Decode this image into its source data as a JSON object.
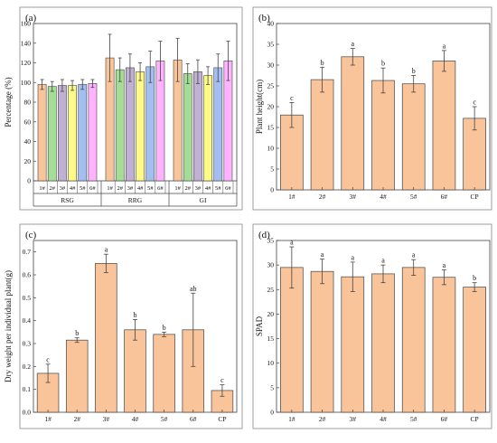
{
  "chart_data": [
    {
      "panel": "(a)",
      "type": "bar",
      "ylabel": "Percentage (%)",
      "ylim": [
        0,
        160
      ],
      "yticks": [
        0,
        20,
        40,
        60,
        80,
        100,
        120,
        140,
        160
      ],
      "groups": [
        "RSG",
        "RRG",
        "GI"
      ],
      "categories": [
        "1#",
        "2#",
        "3#",
        "4#",
        "5#",
        "6#"
      ],
      "series_colors": [
        "#f9c49a",
        "#a6dd96",
        "#c0b0d4",
        "#fdfa88",
        "#a3bff1",
        "#ffb3ff"
      ],
      "values": [
        [
          98,
          96,
          97,
          97,
          98,
          99
        ],
        [
          125,
          113,
          115,
          111,
          116,
          122
        ],
        [
          123,
          109,
          111,
          107,
          115,
          122
        ]
      ],
      "errors": [
        [
          5,
          5,
          6,
          5,
          5,
          4
        ],
        [
          24,
          12,
          14,
          9,
          16,
          20
        ],
        [
          22,
          10,
          12,
          9,
          14,
          20
        ]
      ]
    },
    {
      "panel": "(b)",
      "type": "bar",
      "ylabel": "Plant height(cm)",
      "ylim": [
        0,
        40
      ],
      "yticks": [
        0,
        5,
        10,
        15,
        20,
        25,
        30,
        35,
        40
      ],
      "categories": [
        "1#",
        "2#",
        "3#",
        "4#",
        "5#",
        "6#",
        "CP"
      ],
      "values": [
        18,
        26.5,
        32,
        26.3,
        25.5,
        31,
        17.2
      ],
      "errors": [
        3,
        3,
        2,
        3,
        2,
        2.5,
        2.8
      ],
      "letters": [
        "c",
        "b",
        "a",
        "b",
        "b",
        "a",
        "c"
      ]
    },
    {
      "panel": "(c)",
      "type": "bar",
      "ylabel": "Dry weight per individual plant(g)",
      "ylim": [
        0,
        0.75
      ],
      "yticks": [
        0.0,
        0.1,
        0.2,
        0.3,
        0.4,
        0.5,
        0.6,
        0.7
      ],
      "ytick_labels": [
        "0.0",
        "0.1",
        "0.2",
        "0.3",
        "0.4",
        "0.5",
        "0.6",
        "0.7"
      ],
      "categories": [
        "1#",
        "2#",
        "3#",
        "4#",
        "5#",
        "6#",
        "CP"
      ],
      "values": [
        0.17,
        0.315,
        0.65,
        0.36,
        0.34,
        0.36,
        0.095
      ],
      "errors": [
        0.04,
        0.01,
        0.04,
        0.045,
        0.01,
        0.16,
        0.025
      ],
      "letters": [
        "c",
        "b",
        "a",
        "b",
        "b",
        "ab",
        "c"
      ]
    },
    {
      "panel": "(d)",
      "type": "bar",
      "ylabel": "SPAD",
      "ylim": [
        0,
        35
      ],
      "yticks": [
        0,
        5,
        10,
        15,
        20,
        25,
        30,
        35
      ],
      "categories": [
        "1#",
        "2#",
        "3#",
        "4#",
        "5#",
        "6#",
        "CP"
      ],
      "values": [
        29.5,
        28.7,
        27.6,
        28.2,
        29.5,
        27.5,
        25.5
      ],
      "errors": [
        4.2,
        2.5,
        3,
        1.8,
        1.6,
        1.5,
        0.9
      ],
      "letters": [
        "a",
        "a",
        "a",
        "a",
        "a",
        "a",
        "b"
      ]
    }
  ],
  "colors": {
    "bar": "#f9c49a",
    "edge": "#444444"
  }
}
